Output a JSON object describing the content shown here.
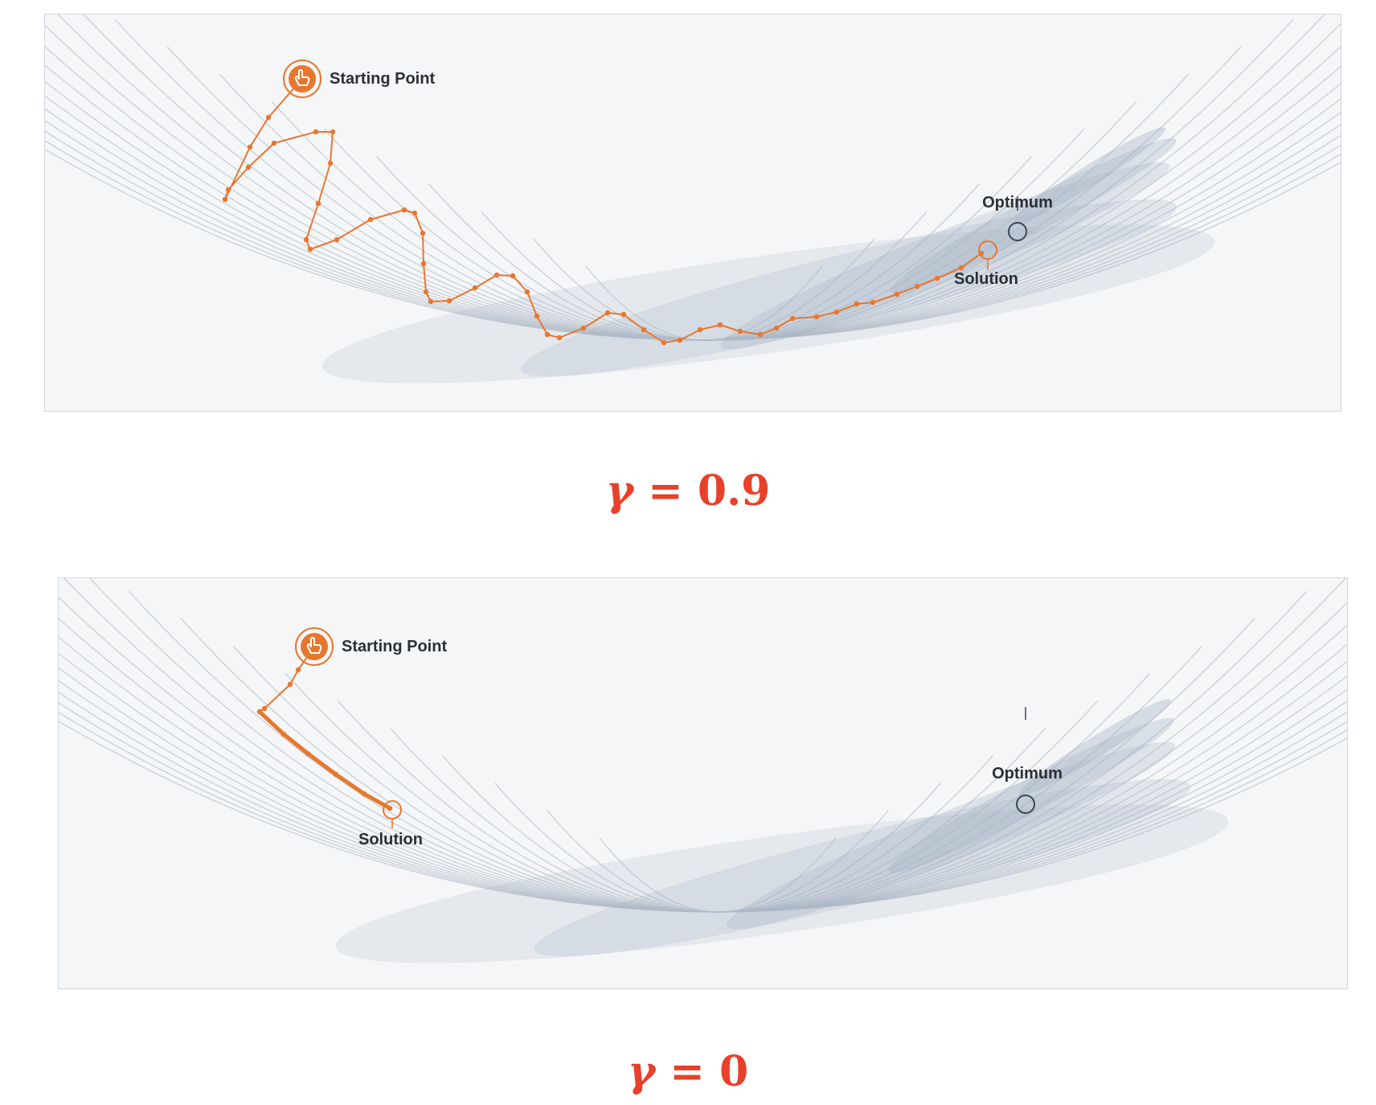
{
  "panels": [
    {
      "id": "top",
      "caption": {
        "symbol": "γ",
        "equals": " = ",
        "value": "0.9"
      },
      "labels": {
        "start": "Starting Point",
        "optimum": "Optimum",
        "solution": "Solution"
      }
    },
    {
      "id": "bottom",
      "caption": {
        "symbol": "γ",
        "equals": " = ",
        "value": "0"
      },
      "labels": {
        "start": "Starting Point",
        "optimum": "Optimum",
        "solution": "Solution"
      }
    }
  ],
  "colors": {
    "path": "#e8772e",
    "marker_ring": "#e8772e",
    "optimum_ring": "#3c4656",
    "contour": "#b7bfca",
    "valley": "#a6b4c5",
    "caption": "#e8402a"
  },
  "icons": {
    "start": "hand-pointer-icon",
    "optimum": "target-circle-icon",
    "solution": "solution-circle-icon"
  }
}
